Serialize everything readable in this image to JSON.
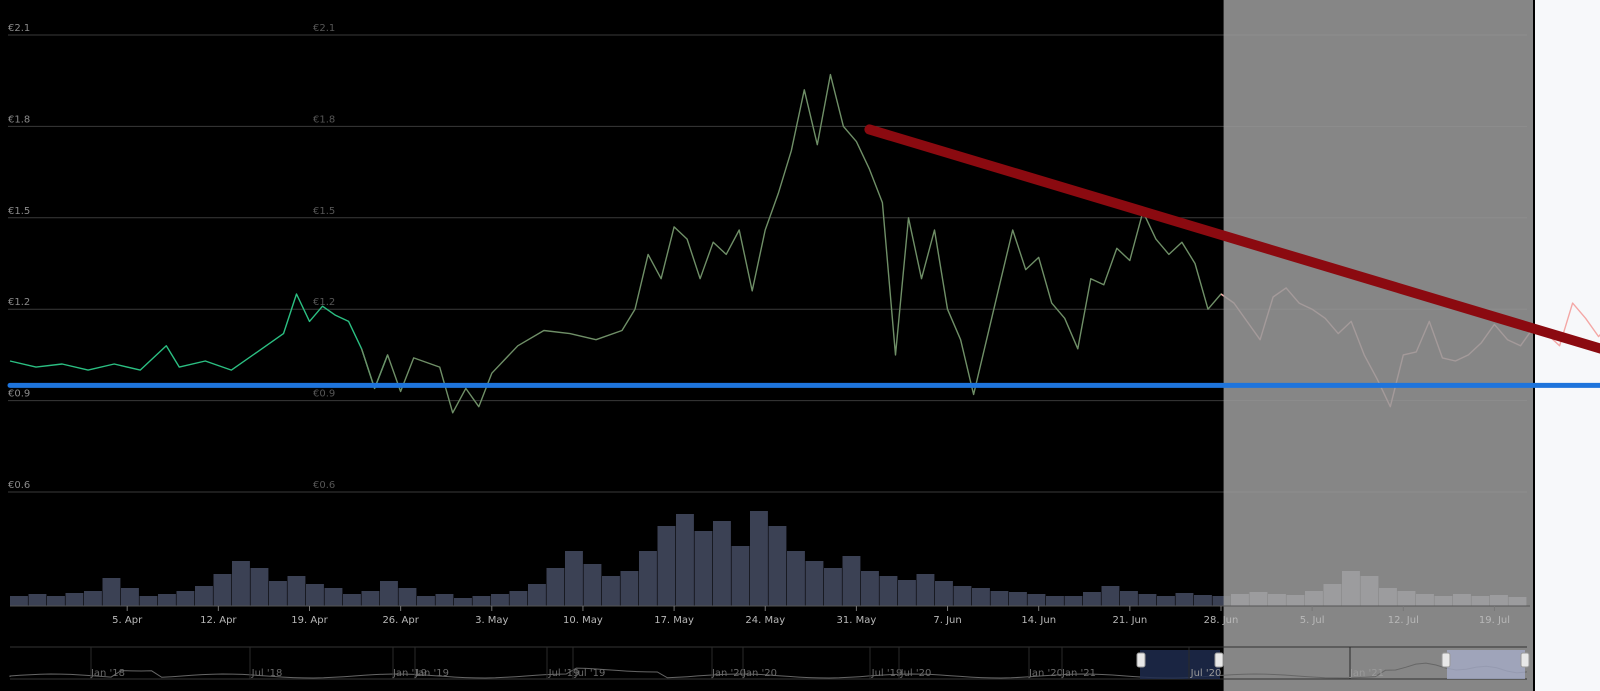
{
  "chart_data": {
    "type": "line",
    "currency": "€",
    "y_ticks": [
      "€2.1",
      "€1.8",
      "€1.5",
      "€1.2",
      "€0.9",
      "€0.6"
    ],
    "y_tick_values": [
      2.1,
      1.8,
      1.5,
      1.2,
      0.9,
      0.6
    ],
    "ylim": [
      0.6,
      2.1
    ],
    "x_ticks": [
      "5. Apr",
      "12. Apr",
      "19. Apr",
      "26. Apr",
      "3. May",
      "10. May",
      "17. May",
      "24. May",
      "31. May",
      "7. Jun",
      "14. Jun",
      "21. Jun",
      "28. Jun",
      "5. Jul",
      "12. Jul",
      "19. Jul"
    ],
    "x_tick_days": [
      4,
      11,
      18,
      25,
      32,
      39,
      46,
      53,
      60,
      67,
      74,
      81,
      88,
      95,
      102,
      109
    ],
    "xlim_days": [
      -5,
      111.5
    ],
    "x_start_date": "2021-03-27",
    "price_series": [
      {
        "day": -5,
        "price": 1.03
      },
      {
        "day": -3,
        "price": 1.01
      },
      {
        "day": -1,
        "price": 1.02
      },
      {
        "day": 1,
        "price": 1.0
      },
      {
        "day": 3,
        "price": 1.02
      },
      {
        "day": 5,
        "price": 1.0
      },
      {
        "day": 7,
        "price": 1.08
      },
      {
        "day": 8,
        "price": 1.01
      },
      {
        "day": 10,
        "price": 1.03
      },
      {
        "day": 12,
        "price": 1.0
      },
      {
        "day": 14,
        "price": 1.06
      },
      {
        "day": 16,
        "price": 1.12
      },
      {
        "day": 17,
        "price": 1.25
      },
      {
        "day": 18,
        "price": 1.16
      },
      {
        "day": 19,
        "price": 1.21
      },
      {
        "day": 20,
        "price": 1.18
      },
      {
        "day": 21,
        "price": 1.16
      },
      {
        "day": 22,
        "price": 1.07
      },
      {
        "day": 23,
        "price": 0.94
      },
      {
        "day": 24,
        "price": 1.05
      },
      {
        "day": 25,
        "price": 0.93
      },
      {
        "day": 26,
        "price": 1.04
      },
      {
        "day": 28,
        "price": 1.01
      },
      {
        "day": 29,
        "price": 0.86
      },
      {
        "day": 30,
        "price": 0.94
      },
      {
        "day": 31,
        "price": 0.88
      },
      {
        "day": 32,
        "price": 0.99
      },
      {
        "day": 34,
        "price": 1.08
      },
      {
        "day": 36,
        "price": 1.13
      },
      {
        "day": 38,
        "price": 1.12
      },
      {
        "day": 40,
        "price": 1.1
      },
      {
        "day": 42,
        "price": 1.13
      },
      {
        "day": 43,
        "price": 1.2
      },
      {
        "day": 44,
        "price": 1.38
      },
      {
        "day": 45,
        "price": 1.3
      },
      {
        "day": 46,
        "price": 1.47
      },
      {
        "day": 47,
        "price": 1.43
      },
      {
        "day": 48,
        "price": 1.3
      },
      {
        "day": 49,
        "price": 1.42
      },
      {
        "day": 50,
        "price": 1.38
      },
      {
        "day": 51,
        "price": 1.46
      },
      {
        "day": 52,
        "price": 1.26
      },
      {
        "day": 53,
        "price": 1.46
      },
      {
        "day": 54,
        "price": 1.58
      },
      {
        "day": 55,
        "price": 1.72
      },
      {
        "day": 56,
        "price": 1.92
      },
      {
        "day": 57,
        "price": 1.74
      },
      {
        "day": 58,
        "price": 1.97
      },
      {
        "day": 59,
        "price": 1.8
      },
      {
        "day": 60,
        "price": 1.75
      },
      {
        "day": 61,
        "price": 1.66
      },
      {
        "day": 62,
        "price": 1.55
      },
      {
        "day": 63,
        "price": 1.05
      },
      {
        "day": 64,
        "price": 1.5
      },
      {
        "day": 65,
        "price": 1.3
      },
      {
        "day": 66,
        "price": 1.46
      },
      {
        "day": 67,
        "price": 1.2
      },
      {
        "day": 68,
        "price": 1.1
      },
      {
        "day": 69,
        "price": 0.92
      },
      {
        "day": 70,
        "price": 1.1
      },
      {
        "day": 71,
        "price": 1.28
      },
      {
        "day": 72,
        "price": 1.46
      },
      {
        "day": 73,
        "price": 1.33
      },
      {
        "day": 74,
        "price": 1.37
      },
      {
        "day": 75,
        "price": 1.22
      },
      {
        "day": 76,
        "price": 1.17
      },
      {
        "day": 77,
        "price": 1.07
      },
      {
        "day": 78,
        "price": 1.3
      },
      {
        "day": 79,
        "price": 1.28
      },
      {
        "day": 80,
        "price": 1.4
      },
      {
        "day": 81,
        "price": 1.36
      },
      {
        "day": 82,
        "price": 1.52
      },
      {
        "day": 83,
        "price": 1.43
      },
      {
        "day": 84,
        "price": 1.38
      },
      {
        "day": 85,
        "price": 1.42
      },
      {
        "day": 86,
        "price": 1.35
      },
      {
        "day": 87,
        "price": 1.2
      },
      {
        "day": 88,
        "price": 1.25
      },
      {
        "day": 89,
        "price": 1.22
      },
      {
        "day": 90,
        "price": 1.16
      },
      {
        "day": 91,
        "price": 1.1
      },
      {
        "day": 92,
        "price": 1.24
      },
      {
        "day": 93,
        "price": 1.27
      },
      {
        "day": 94,
        "price": 1.22
      },
      {
        "day": 95,
        "price": 1.2
      },
      {
        "day": 96,
        "price": 1.17
      },
      {
        "day": 97,
        "price": 1.12
      },
      {
        "day": 98,
        "price": 1.16
      },
      {
        "day": 99,
        "price": 1.05
      },
      {
        "day": 100,
        "price": 0.97
      },
      {
        "day": 101,
        "price": 0.88
      },
      {
        "day": 102,
        "price": 1.05
      },
      {
        "day": 103,
        "price": 1.06
      },
      {
        "day": 104,
        "price": 1.16
      },
      {
        "day": 105,
        "price": 1.04
      },
      {
        "day": 106,
        "price": 1.03
      },
      {
        "day": 107,
        "price": 1.05
      },
      {
        "day": 108,
        "price": 1.09
      },
      {
        "day": 109,
        "price": 1.15
      },
      {
        "day": 110,
        "price": 1.1
      },
      {
        "day": 111,
        "price": 1.08
      },
      {
        "day": 112,
        "price": 1.14
      },
      {
        "day": 113,
        "price": 1.12
      },
      {
        "day": 114,
        "price": 1.08
      },
      {
        "day": 115,
        "price": 1.22
      },
      {
        "day": 116,
        "price": 1.17
      },
      {
        "day": 117,
        "price": 1.11
      },
      {
        "day": 118,
        "price": 1.16
      },
      {
        "day": 119,
        "price": 1.14
      },
      {
        "day": 120,
        "price": 1.09
      },
      {
        "day": 121,
        "price": 1.05
      },
      {
        "day": 122,
        "price": 1.03
      },
      {
        "day": 123,
        "price": 1.0
      },
      {
        "day": 124,
        "price": 0.96
      },
      {
        "day": 125,
        "price": 1.0
      },
      {
        "day": 126,
        "price": 0.92
      }
    ],
    "price_colors": {
      "line": "#2bbf82",
      "line_dimmed": "#6f8f67",
      "line_hidden_region": "#f4a7a5"
    },
    "volume_relative": [
      0.1,
      0.12,
      0.1,
      0.13,
      0.15,
      0.28,
      0.18,
      0.1,
      0.12,
      0.15,
      0.2,
      0.32,
      0.45,
      0.38,
      0.25,
      0.3,
      0.22,
      0.18,
      0.12,
      0.15,
      0.25,
      0.18,
      0.1,
      0.12,
      0.08,
      0.1,
      0.12,
      0.15,
      0.22,
      0.38,
      0.55,
      0.42,
      0.3,
      0.35,
      0.55,
      0.8,
      0.92,
      0.75,
      0.85,
      0.6,
      0.95,
      0.8,
      0.55,
      0.45,
      0.38,
      0.5,
      0.35,
      0.3,
      0.26,
      0.32,
      0.25,
      0.2,
      0.18,
      0.15,
      0.14,
      0.12,
      0.1,
      0.1,
      0.14,
      0.2,
      0.15,
      0.12,
      0.1,
      0.13,
      0.11,
      0.1,
      0.12,
      0.14,
      0.12,
      0.11,
      0.15,
      0.22,
      0.35,
      0.3,
      0.18,
      0.15,
      0.12,
      0.1,
      0.12,
      0.1,
      0.11,
      0.09
    ],
    "trendlines": [
      {
        "kind": "resistance",
        "color": "#8b0a10",
        "from": {
          "day": 61,
          "price": 1.79
        },
        "to": {
          "day": 125,
          "price": 0.97
        }
      },
      {
        "kind": "support",
        "color": "#1e74dc",
        "from": {
          "day": -5,
          "price": 0.95
        },
        "to": {
          "day": 125,
          "price": 0.95
        }
      }
    ],
    "hidden_region": {
      "from_day": 88.2,
      "to_day": 111.5
    },
    "navigator": {
      "labels": [
        "Jan '18",
        "Jul '18",
        "Jan '19",
        "Jan '19",
        "Jul '19",
        "Jul '19",
        "Jan '20",
        "Jan '20",
        "Jul '19",
        "Jul '20",
        "Jan '20",
        "Jan '21",
        "Jul '20",
        "Jan '21"
      ]
    },
    "grid": true,
    "legend": "none"
  }
}
